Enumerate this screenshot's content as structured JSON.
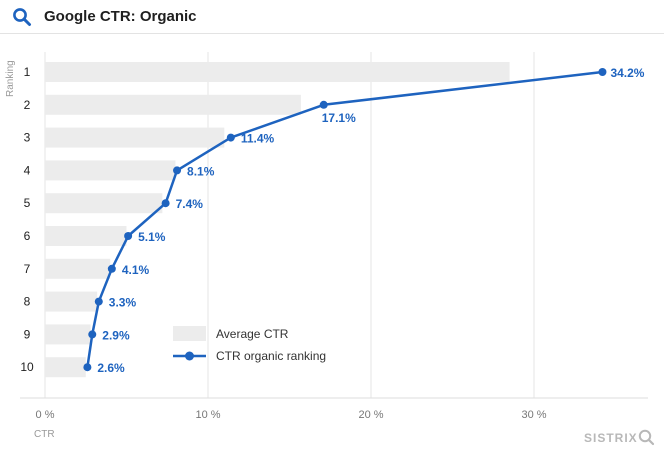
{
  "header": {
    "title": "Google CTR: Organic",
    "icon": "search-icon"
  },
  "watermark": "SISTRIX",
  "colors": {
    "line": "#1e63bf",
    "bar": "#ececec",
    "grid": "#e6e6e6"
  },
  "chart_data": {
    "type": "bar",
    "title": "Google CTR: Organic",
    "xlabel": "CTR",
    "ylabel": "Ranking",
    "categories": [
      "1",
      "2",
      "3",
      "4",
      "5",
      "6",
      "7",
      "8",
      "9",
      "10"
    ],
    "x_ticks": [
      "0 %",
      "10 %",
      "20 %",
      "30 %"
    ],
    "xlim": [
      0,
      37.5
    ],
    "grid": true,
    "legend": "center-right",
    "series": [
      {
        "name": "Average CTR",
        "type": "bar",
        "values": [
          28.5,
          15.7,
          11.0,
          8.0,
          7.2,
          5.0,
          4.0,
          3.2,
          2.8,
          2.5
        ]
      },
      {
        "name": "CTR organic ranking",
        "type": "line",
        "values": [
          34.2,
          17.1,
          11.4,
          8.1,
          7.4,
          5.1,
          4.1,
          3.3,
          2.9,
          2.6
        ],
        "labels": [
          "34.2%",
          "17.1%",
          "11.4%",
          "8.1%",
          "7.4%",
          "5.1%",
          "4.1%",
          "3.3%",
          "2.9%",
          "2.6%"
        ]
      }
    ]
  }
}
